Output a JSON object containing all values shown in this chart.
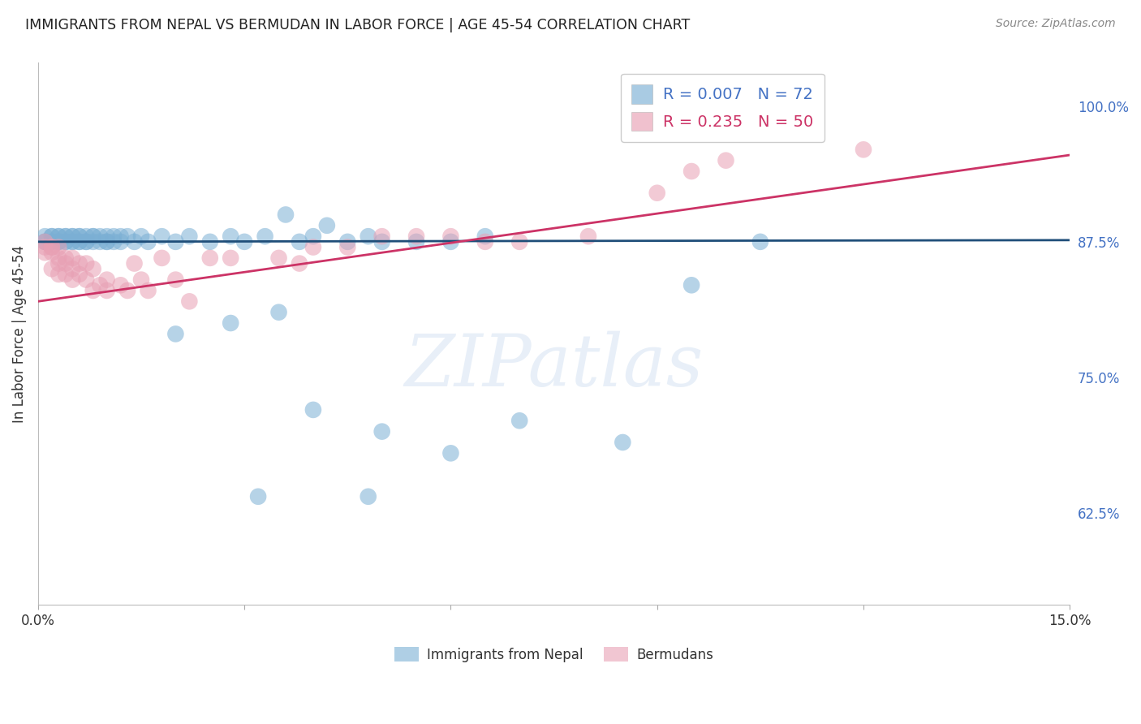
{
  "title": "IMMIGRANTS FROM NEPAL VS BERMUDAN IN LABOR FORCE | AGE 45-54 CORRELATION CHART",
  "source": "Source: ZipAtlas.com",
  "ylabel": "In Labor Force | Age 45-54",
  "xlim": [
    0.0,
    0.15
  ],
  "ylim": [
    0.54,
    1.04
  ],
  "yticks_right": [
    1.0,
    0.875,
    0.75,
    0.625
  ],
  "ytick_labels_right": [
    "100.0%",
    "87.5%",
    "75.0%",
    "62.5%"
  ],
  "xticks": [
    0.0,
    0.03,
    0.06,
    0.09,
    0.12,
    0.15
  ],
  "xtick_labels": [
    "0.0%",
    "",
    "",
    "",
    "",
    "15.0%"
  ],
  "title_color": "#222222",
  "source_color": "#888888",
  "blue_color": "#7bafd4",
  "pink_color": "#e8a0b4",
  "blue_line_color": "#1f4e79",
  "pink_line_color": "#cc3366",
  "legend_R1": "R = 0.007",
  "legend_N1": "N = 72",
  "legend_R2": "R = 0.235",
  "legend_N2": "N = 50",
  "legend_label1": "Immigrants from Nepal",
  "legend_label2": "Bermudans",
  "blue_x": [
    0.001,
    0.001,
    0.001,
    0.002,
    0.002,
    0.002,
    0.002,
    0.003,
    0.003,
    0.003,
    0.003,
    0.003,
    0.004,
    0.004,
    0.004,
    0.004,
    0.005,
    0.005,
    0.005,
    0.005,
    0.006,
    0.006,
    0.006,
    0.006,
    0.007,
    0.007,
    0.007,
    0.008,
    0.008,
    0.008,
    0.009,
    0.009,
    0.01,
    0.01,
    0.01,
    0.011,
    0.011,
    0.012,
    0.012,
    0.013,
    0.014,
    0.015,
    0.016,
    0.018,
    0.02,
    0.022,
    0.025,
    0.028,
    0.03,
    0.033,
    0.036,
    0.038,
    0.04,
    0.042,
    0.045,
    0.048,
    0.05,
    0.055,
    0.06,
    0.065,
    0.02,
    0.028,
    0.035,
    0.04,
    0.05,
    0.06,
    0.07,
    0.085,
    0.095,
    0.105,
    0.032,
    0.048
  ],
  "blue_y": [
    0.875,
    0.875,
    0.88,
    0.875,
    0.88,
    0.875,
    0.88,
    0.875,
    0.88,
    0.875,
    0.88,
    0.875,
    0.875,
    0.88,
    0.875,
    0.88,
    0.875,
    0.88,
    0.875,
    0.88,
    0.875,
    0.88,
    0.875,
    0.88,
    0.875,
    0.88,
    0.875,
    0.88,
    0.875,
    0.88,
    0.875,
    0.88,
    0.875,
    0.88,
    0.875,
    0.88,
    0.875,
    0.88,
    0.875,
    0.88,
    0.875,
    0.88,
    0.875,
    0.88,
    0.875,
    0.88,
    0.875,
    0.88,
    0.875,
    0.88,
    0.9,
    0.875,
    0.88,
    0.89,
    0.875,
    0.88,
    0.875,
    0.875,
    0.875,
    0.88,
    0.79,
    0.8,
    0.81,
    0.72,
    0.7,
    0.68,
    0.71,
    0.69,
    0.835,
    0.875,
    0.64,
    0.64
  ],
  "pink_x": [
    0.001,
    0.001,
    0.001,
    0.002,
    0.002,
    0.002,
    0.002,
    0.003,
    0.003,
    0.003,
    0.003,
    0.004,
    0.004,
    0.004,
    0.005,
    0.005,
    0.005,
    0.006,
    0.006,
    0.007,
    0.007,
    0.008,
    0.008,
    0.009,
    0.01,
    0.01,
    0.012,
    0.013,
    0.014,
    0.015,
    0.016,
    0.018,
    0.02,
    0.022,
    0.025,
    0.028,
    0.035,
    0.038,
    0.04,
    0.045,
    0.05,
    0.055,
    0.06,
    0.065,
    0.07,
    0.08,
    0.09,
    0.095,
    0.1,
    0.12
  ],
  "pink_y": [
    0.875,
    0.87,
    0.865,
    0.87,
    0.865,
    0.87,
    0.85,
    0.87,
    0.86,
    0.855,
    0.845,
    0.86,
    0.855,
    0.845,
    0.86,
    0.85,
    0.84,
    0.855,
    0.845,
    0.855,
    0.84,
    0.85,
    0.83,
    0.835,
    0.84,
    0.83,
    0.835,
    0.83,
    0.855,
    0.84,
    0.83,
    0.86,
    0.84,
    0.82,
    0.86,
    0.86,
    0.86,
    0.855,
    0.87,
    0.87,
    0.88,
    0.88,
    0.88,
    0.875,
    0.875,
    0.88,
    0.92,
    0.94,
    0.95,
    0.96
  ]
}
